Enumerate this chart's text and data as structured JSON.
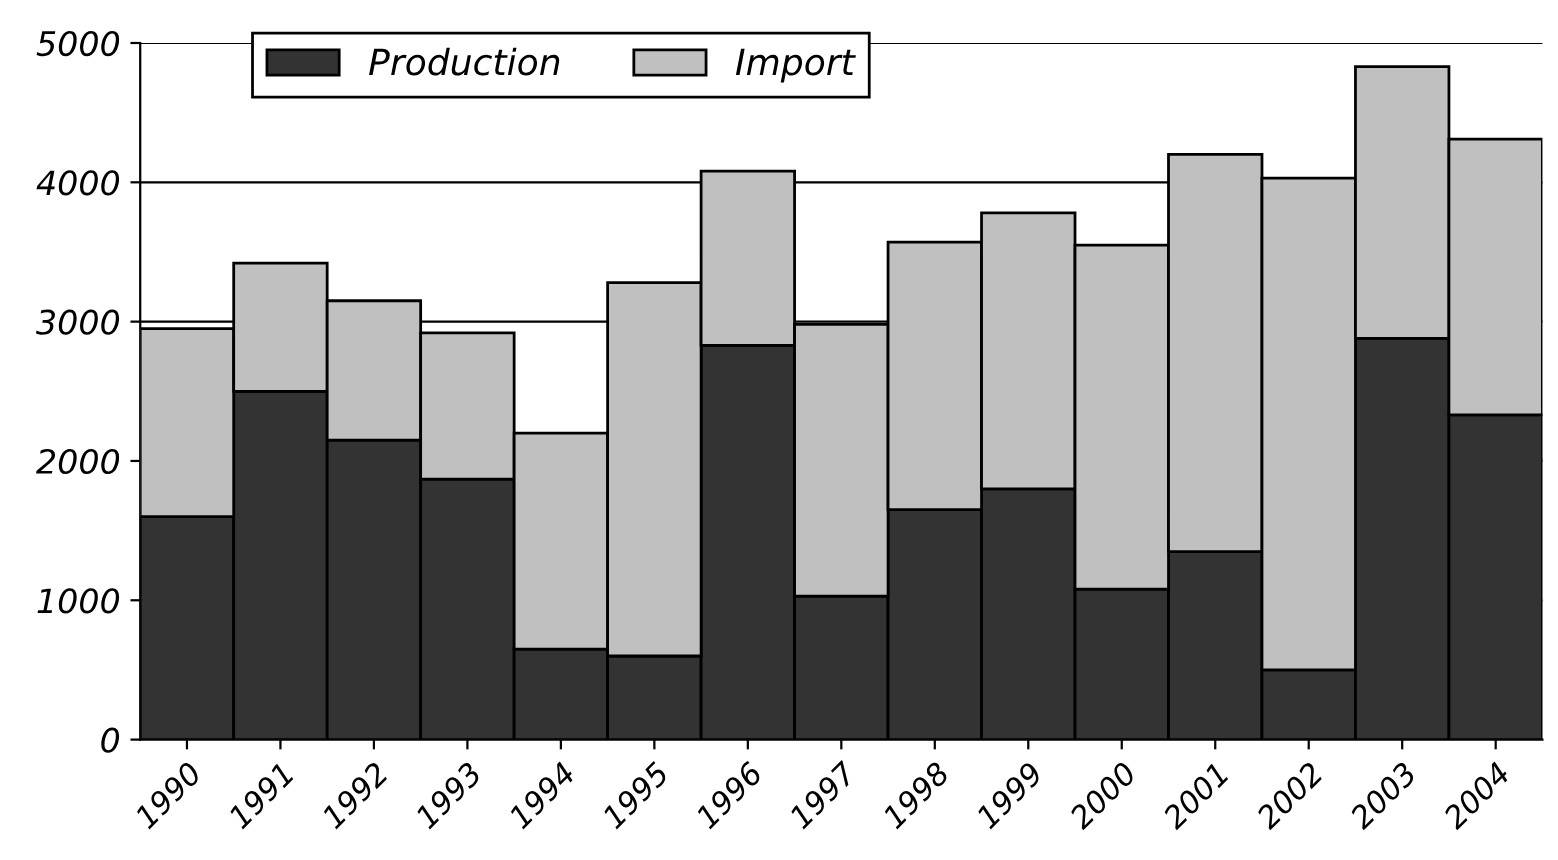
{
  "chart_data": {
    "type": "bar",
    "stacked": true,
    "categories": [
      "1990",
      "1991",
      "1992",
      "1993",
      "1994",
      "1995",
      "1996",
      "1997",
      "1998",
      "1999",
      "2000",
      "2001",
      "2002",
      "2003",
      "2004"
    ],
    "series": [
      {
        "name": "Production",
        "color": "#333333",
        "values": [
          1600,
          2500,
          2150,
          1870,
          650,
          600,
          2830,
          1030,
          1650,
          1800,
          1080,
          1350,
          500,
          2880,
          2330
        ]
      },
      {
        "name": "Import",
        "color": "#c0c0c0",
        "values": [
          1350,
          920,
          1000,
          1050,
          1550,
          2680,
          1250,
          1950,
          1920,
          1980,
          2470,
          2850,
          3530,
          1950,
          1980
        ]
      }
    ],
    "ylim": [
      0,
      5000
    ],
    "yticks": [
      0,
      1000,
      2000,
      3000,
      4000,
      5000
    ],
    "grid": "y",
    "legend": "top"
  }
}
